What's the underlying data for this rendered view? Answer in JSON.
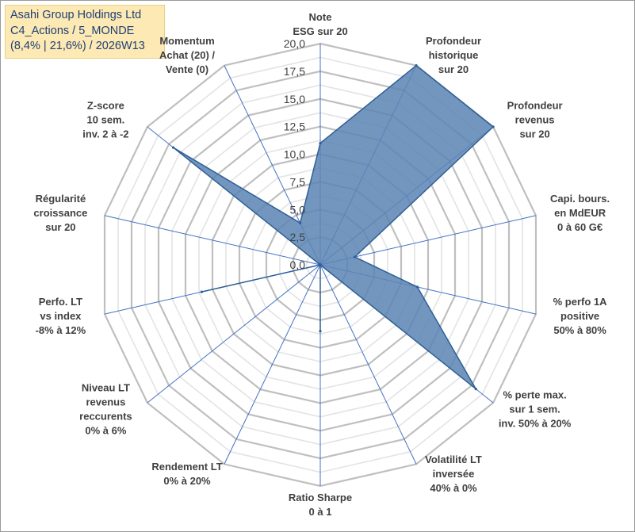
{
  "title": {
    "lines": [
      "Asahi Group Holdings Ltd",
      "C4_Actions / 5_MONDE",
      "(8,4% | 21,6%) / 2026W13"
    ]
  },
  "chart_data": {
    "type": "radar",
    "title": "Asahi Group Holdings Ltd",
    "r_range": [
      0,
      20
    ],
    "r_ticks": [
      0,
      2.5,
      5,
      7.5,
      10,
      12.5,
      15,
      17.5,
      20
    ],
    "r_tick_labels": [
      "0,0",
      "2,5",
      "5,0",
      "7,5",
      "10,0",
      "12,5",
      "15,0",
      "17,5",
      "20,0"
    ],
    "grid": true,
    "legend": "none",
    "colors": {
      "fill": "#5c85b4",
      "stroke": "#2e5f96",
      "grid": "#bfbfbf",
      "spoke": "#4472c4"
    },
    "axes": [
      {
        "lines": [
          "Note",
          "ESG sur 20"
        ]
      },
      {
        "lines": [
          "Profondeur",
          "historique",
          "sur 20"
        ]
      },
      {
        "lines": [
          "Profondeur",
          "revenus",
          "sur 20"
        ]
      },
      {
        "lines": [
          "Capi. bours.",
          "en MdEUR",
          "0 à 60 G€"
        ]
      },
      {
        "lines": [
          "% perfo 1A",
          "positive",
          "50% à 80%"
        ]
      },
      {
        "lines": [
          "% perte max.",
          "sur 1 sem.",
          "inv. 50% à 20%"
        ]
      },
      {
        "lines": [
          "Volatilité LT",
          "inversée",
          "40% à 0%"
        ]
      },
      {
        "lines": [
          "Ratio Sharpe",
          "0 à 1"
        ]
      },
      {
        "lines": [
          "Rendement LT",
          "0% à 20%"
        ]
      },
      {
        "lines": [
          "Niveau LT",
          "revenus",
          "reccurents",
          "0% à 6%"
        ]
      },
      {
        "lines": [
          "Perfo. LT",
          "vs index",
          "-8% à 12%"
        ]
      },
      {
        "lines": [
          "Régularité",
          "croissance",
          "sur 20"
        ]
      },
      {
        "lines": [
          "Z-score",
          "10 sem.",
          "inv. 2 à -2"
        ]
      },
      {
        "lines": [
          "Momentum",
          "Achat (20) /",
          "Vente (0)"
        ]
      }
    ],
    "series": [
      {
        "name": "Asahi Group Holdings Ltd",
        "values": [
          11.0,
          20.0,
          20.0,
          3.2,
          9.0,
          18.0,
          0.0,
          6.0,
          0.0,
          0.0,
          11.0,
          0.0,
          17.0,
          4.2
        ]
      }
    ]
  }
}
